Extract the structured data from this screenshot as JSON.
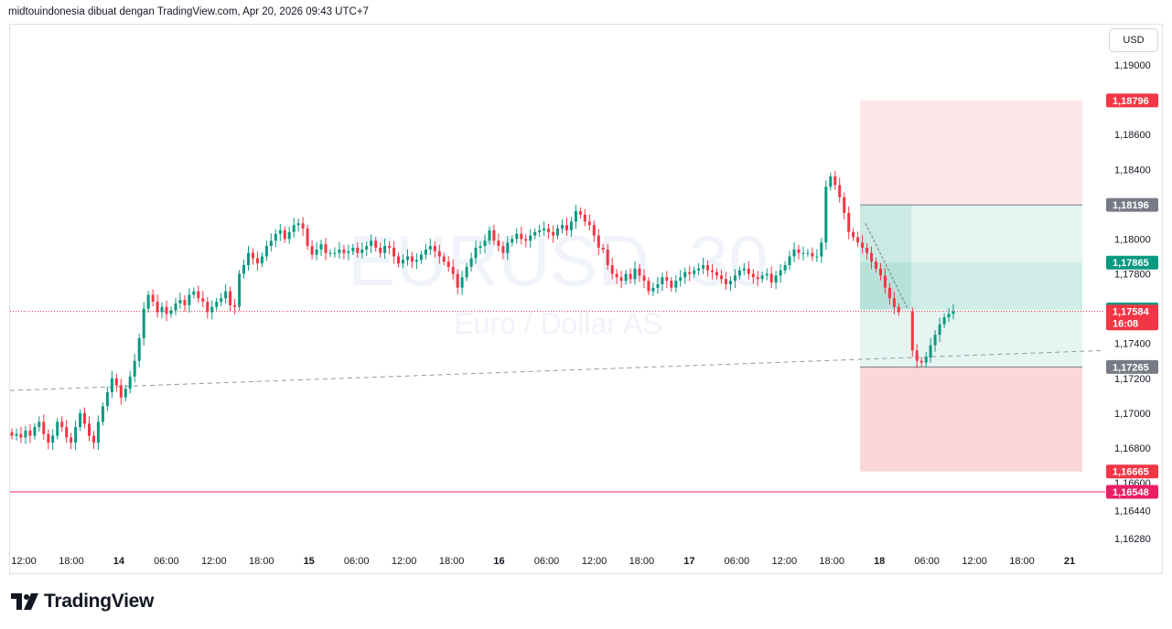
{
  "header": {
    "attribution": "midtouindonesia dibuat dengan TradingView.com, Apr 20, 2026 09:43 UTC+7"
  },
  "currency_button": "USD",
  "brand": {
    "name": "TradingView"
  },
  "chart_data": {
    "type": "candlestick",
    "watermark": {
      "symbol": "EURUSD, 30",
      "description": "Euro / Dollar AS"
    },
    "ylim": [
      1.1624,
      1.1922
    ],
    "y_ticks": [
      {
        "value": 1.19,
        "label": "1,19000"
      },
      {
        "value": 1.186,
        "label": "1,18600"
      },
      {
        "value": 1.184,
        "label": "1,18400"
      },
      {
        "value": 1.18,
        "label": "1,18000"
      },
      {
        "value": 1.178,
        "label": "1,17800"
      },
      {
        "value": 1.174,
        "label": "1,17400"
      },
      {
        "value": 1.172,
        "label": "1,17200"
      },
      {
        "value": 1.17,
        "label": "1,17000"
      },
      {
        "value": 1.168,
        "label": "1,16800"
      },
      {
        "value": 1.166,
        "label": "1,16600"
      },
      {
        "value": 1.1644,
        "label": "1,16440"
      },
      {
        "value": 1.1628,
        "label": "1,16280"
      }
    ],
    "x_ticks": [
      {
        "label": "12:00",
        "bold": false
      },
      {
        "label": "18:00",
        "bold": false
      },
      {
        "label": "14",
        "bold": true
      },
      {
        "label": "06:00",
        "bold": false
      },
      {
        "label": "12:00",
        "bold": false
      },
      {
        "label": "18:00",
        "bold": false
      },
      {
        "label": "15",
        "bold": true
      },
      {
        "label": "06:00",
        "bold": false
      },
      {
        "label": "12:00",
        "bold": false
      },
      {
        "label": "18:00",
        "bold": false
      },
      {
        "label": "16",
        "bold": true
      },
      {
        "label": "06:00",
        "bold": false
      },
      {
        "label": "12:00",
        "bold": false
      },
      {
        "label": "18:00",
        "bold": false
      },
      {
        "label": "17",
        "bold": true
      },
      {
        "label": "06:00",
        "bold": false
      },
      {
        "label": "12:00",
        "bold": false
      },
      {
        "label": "18:00",
        "bold": false
      },
      {
        "label": "18",
        "bold": true
      },
      {
        "label": "06:00",
        "bold": false
      },
      {
        "label": "12:00",
        "bold": false
      },
      {
        "label": "18:00",
        "bold": false
      },
      {
        "label": "21",
        "bold": true
      }
    ],
    "price_tags": [
      {
        "label": "1,18796",
        "value": 1.18796,
        "color": "#f23645"
      },
      {
        "label": "1,18196",
        "value": 1.18196,
        "color": "#787b86"
      },
      {
        "label": "1,17865",
        "value": 1.17865,
        "color": "#089981"
      },
      {
        "label": "1,17596",
        "value": 1.17596,
        "color": "#089981"
      },
      {
        "label": "1,17584",
        "value": 1.17584,
        "color": "#f23645",
        "countdown": "16:08"
      },
      {
        "label": "1,17265",
        "value": 1.17265,
        "color": "#787b86"
      },
      {
        "label": "1,16665",
        "value": 1.16665,
        "color": "#f23645"
      },
      {
        "label": "1,16548",
        "value": 1.16548,
        "color": "#e91e63"
      }
    ],
    "position_tool": {
      "entry": 1.18196,
      "stop": 1.18796,
      "target_1": 1.17265,
      "target_2": 1.16665,
      "inner_level": 1.17865,
      "fill_level": 1.17596
    },
    "horizontal_line": {
      "value": 1.16548,
      "color": "#e91e63"
    },
    "current_price": {
      "value": 1.17584,
      "color": "#f23645"
    },
    "trend_line": {
      "start_value": 1.1713,
      "end_value": 1.1736
    },
    "series": [
      {
        "name": "EURUSD",
        "close": [
          1.1687,
          1.1688,
          1.1686,
          1.169,
          1.1687,
          1.1692,
          1.1695,
          1.1688,
          1.1683,
          1.1687,
          1.1695,
          1.1692,
          1.1686,
          1.1683,
          1.1692,
          1.17,
          1.1694,
          1.1687,
          1.1683,
          1.1695,
          1.1704,
          1.1712,
          1.172,
          1.1716,
          1.1709,
          1.1714,
          1.1721,
          1.173,
          1.1743,
          1.176,
          1.1768,
          1.1764,
          1.1758,
          1.1761,
          1.1757,
          1.1759,
          1.1763,
          1.1765,
          1.1762,
          1.1768,
          1.177,
          1.1766,
          1.1764,
          1.1758,
          1.1761,
          1.1764,
          1.1766,
          1.177,
          1.1762,
          1.1761,
          1.178,
          1.1785,
          1.1792,
          1.1789,
          1.1786,
          1.179,
          1.1796,
          1.1799,
          1.1803,
          1.1805,
          1.18,
          1.1804,
          1.1808,
          1.1809,
          1.1806,
          1.1796,
          1.1791,
          1.1794,
          1.1797,
          1.1792,
          1.1792,
          1.1792,
          1.1794,
          1.1792,
          1.1793,
          1.1795,
          1.1792,
          1.1794,
          1.1796,
          1.1799,
          1.1795,
          1.1792,
          1.1796,
          1.1795,
          1.179,
          1.1786,
          1.1788,
          1.179,
          1.1787,
          1.1788,
          1.1791,
          1.1794,
          1.1796,
          1.1793,
          1.179,
          1.1787,
          1.1784,
          1.178,
          1.1772,
          1.1778,
          1.1784,
          1.1789,
          1.1795,
          1.1796,
          1.1799,
          1.1805,
          1.1799,
          1.1796,
          1.1792,
          1.1798,
          1.18,
          1.1803,
          1.18,
          1.1799,
          1.1802,
          1.1804,
          1.1805,
          1.1806,
          1.1804,
          1.1802,
          1.1806,
          1.1808,
          1.1805,
          1.181,
          1.1816,
          1.1814,
          1.181,
          1.1808,
          1.1802,
          1.1795,
          1.1794,
          1.1785,
          1.178,
          1.1778,
          1.1776,
          1.178,
          1.1777,
          1.1783,
          1.1779,
          1.1776,
          1.177,
          1.1772,
          1.1774,
          1.1778,
          1.1776,
          1.1772,
          1.1776,
          1.1778,
          1.1781,
          1.178,
          1.1782,
          1.1783,
          1.1785,
          1.1782,
          1.1781,
          1.1779,
          1.1777,
          1.1774,
          1.1776,
          1.1779,
          1.1782,
          1.1783,
          1.178,
          1.1778,
          1.1777,
          1.1779,
          1.178,
          1.1775,
          1.1779,
          1.1782,
          1.1785,
          1.179,
          1.1794,
          1.1792,
          1.1792,
          1.1792,
          1.179,
          1.179,
          1.1798,
          1.183,
          1.1836,
          1.1831,
          1.1824,
          1.1815,
          1.1804,
          1.1801,
          1.1798,
          1.1795,
          1.1792,
          1.1787,
          1.1783,
          1.1779,
          1.1772,
          1.1766,
          1.1761,
          1.1758,
          null,
          null,
          1.1736,
          1.173,
          1.1729,
          1.1732,
          1.1739,
          1.1745,
          1.1751,
          1.1755,
          1.1757,
          1.17584
        ]
      }
    ]
  }
}
